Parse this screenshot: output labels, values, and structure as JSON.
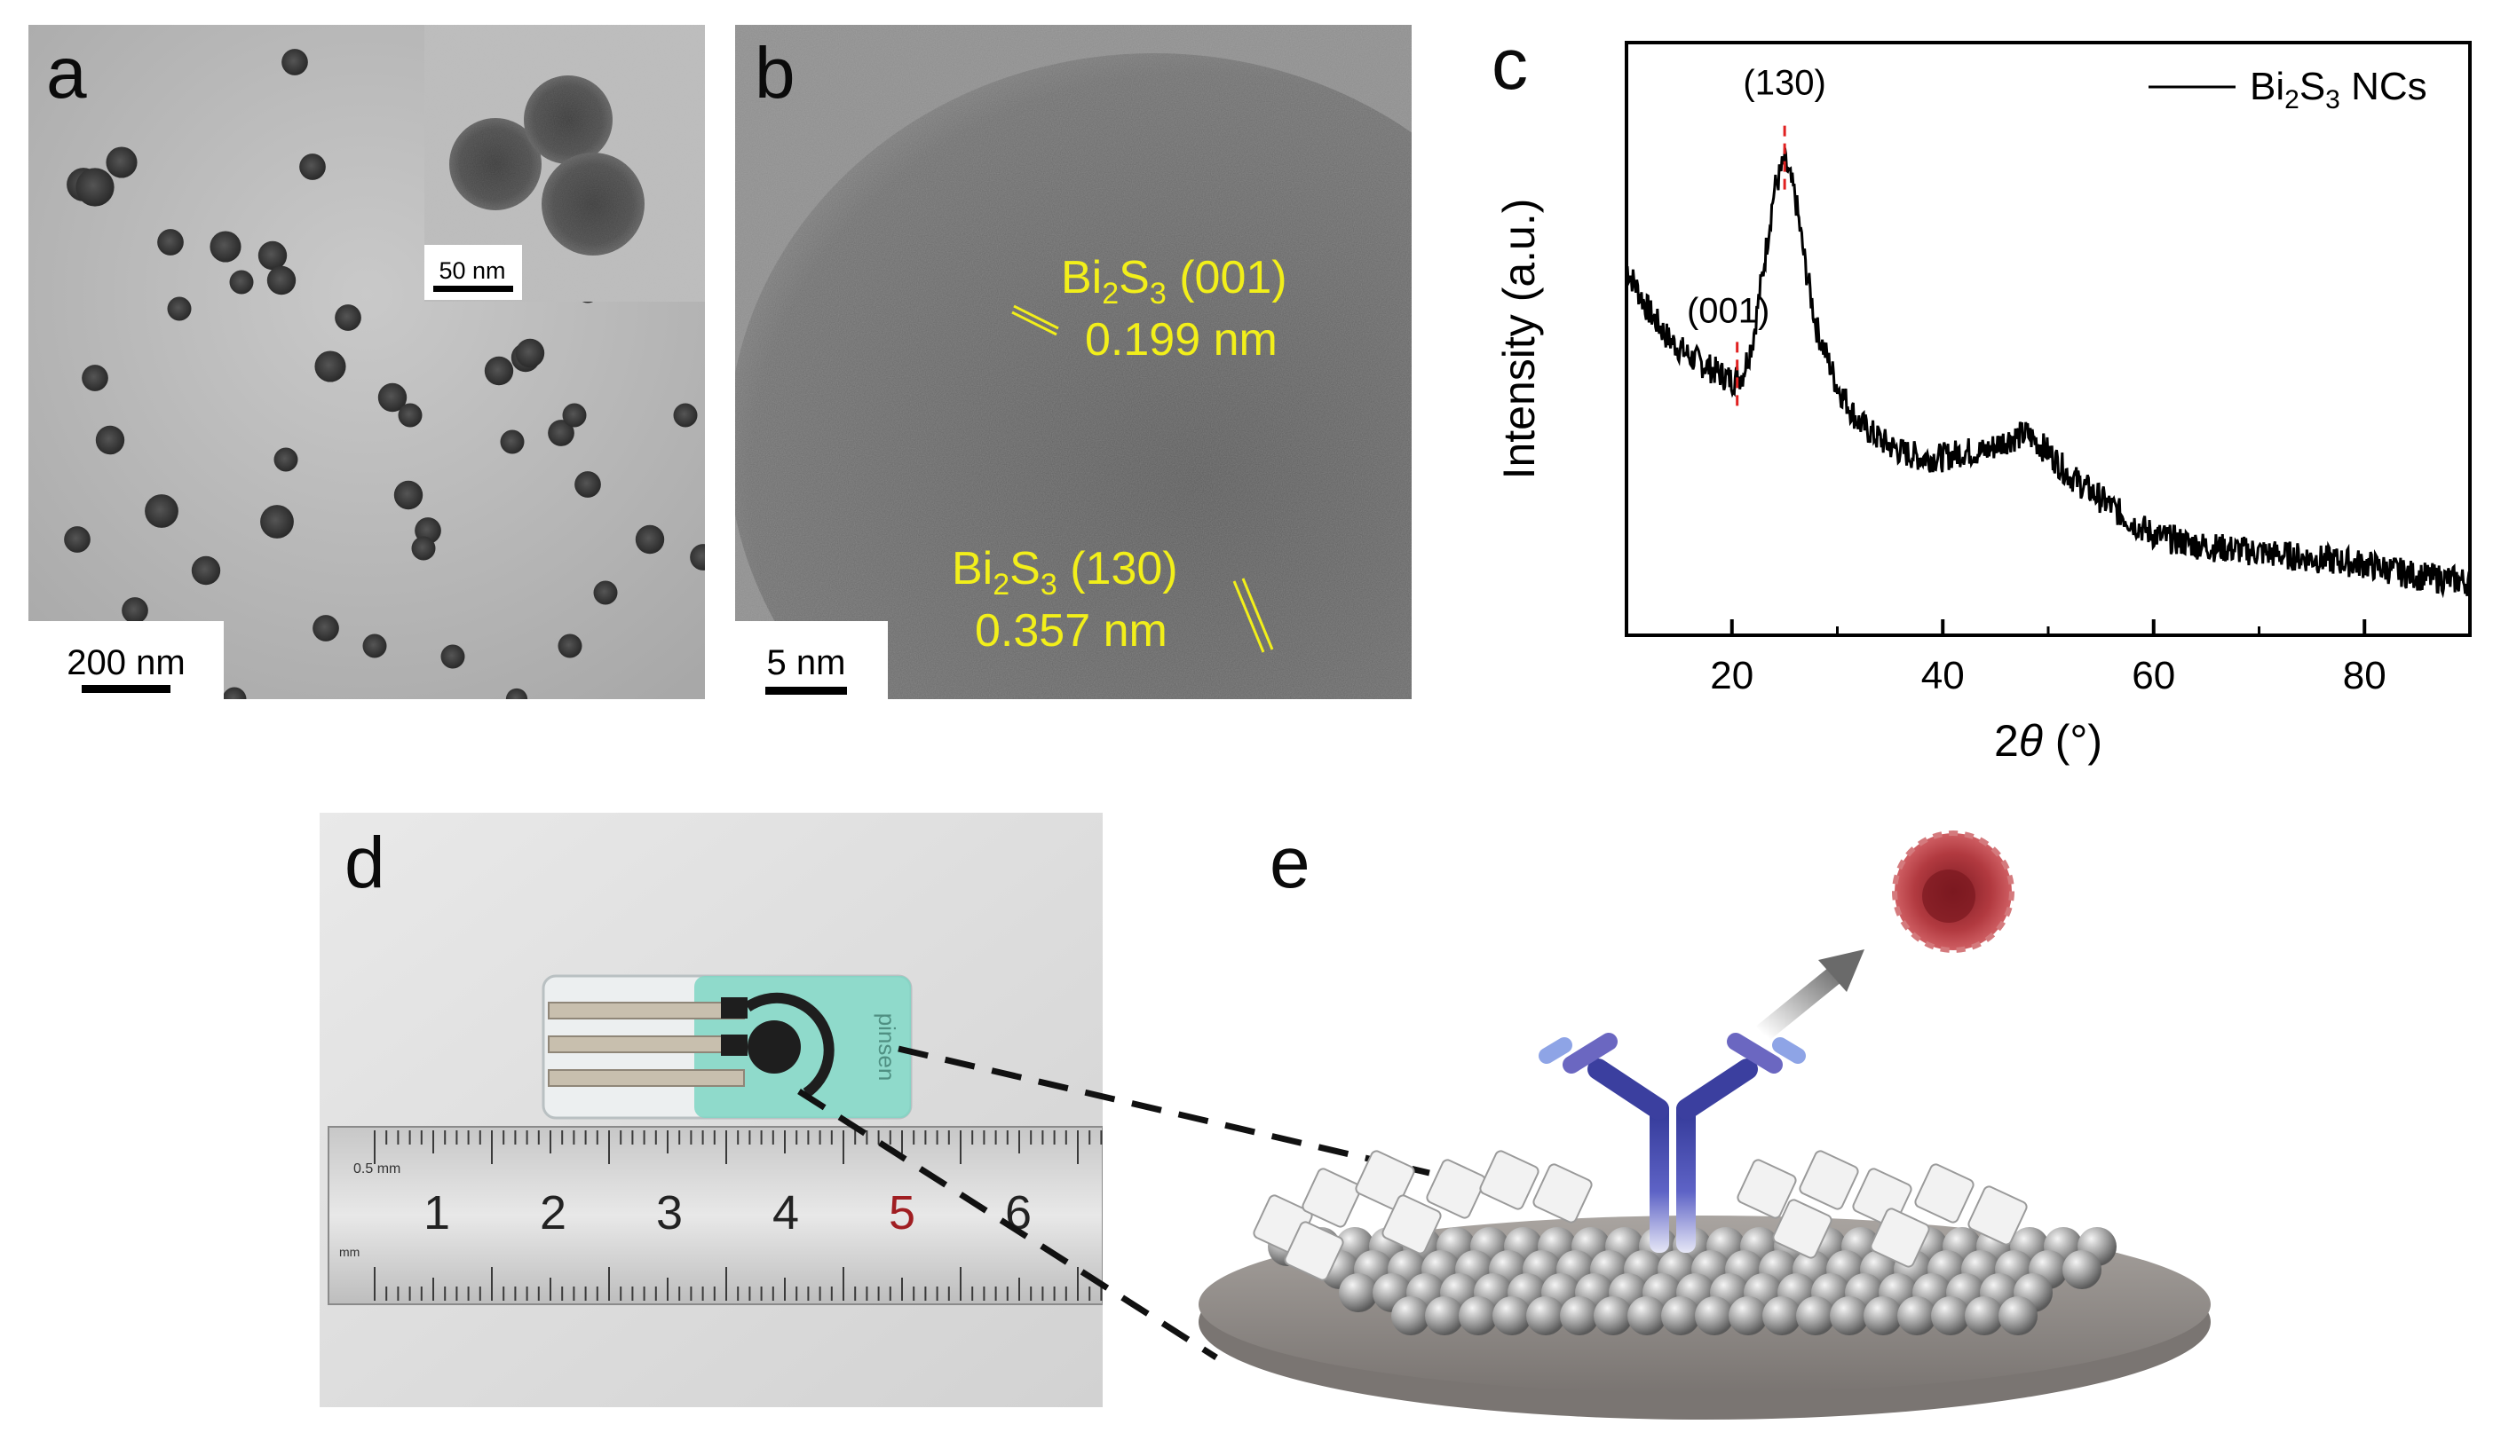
{
  "panel_a": {
    "letter": "a",
    "scale_bar_label": "200 nm",
    "inset_scale_bar_label": "50 nm"
  },
  "panel_b": {
    "letter": "b",
    "scale_bar_label": "5 nm",
    "annotation_1_formula": {
      "base1": "Bi",
      "sub1": "2",
      "base2": "S",
      "sub2": "3"
    },
    "annotation_1_plane": " (001)",
    "annotation_1_spacing": "0.199 nm",
    "annotation_2_formula": {
      "base1": "Bi",
      "sub1": "2",
      "base2": "S",
      "sub2": "3"
    },
    "annotation_2_plane": " (130)",
    "annotation_2_spacing": "0.357 nm"
  },
  "panel_c": {
    "letter": "c",
    "chart_data": {
      "type": "line",
      "xlabel_prefix": "2",
      "xlabel_theta": "θ",
      "xlabel_suffix": " (°)",
      "ylabel": "Intensity (a.u.)",
      "xlim": [
        10,
        90
      ],
      "x_ticks": [
        20,
        40,
        60,
        80
      ],
      "y_ticks_shown": false,
      "legend": {
        "base1": "Bi",
        "sub1": "2",
        "base2": "S",
        "sub2": "3",
        "suffix": " NCs",
        "placement": "top-right"
      },
      "peak_labels": [
        {
          "label": "(001)",
          "x": 20.5
        },
        {
          "label": "(130)",
          "x": 25.0
        }
      ],
      "reference_lines_color": "#e02020",
      "series": [
        {
          "name": "Bi2S3 NCs",
          "color": "#000000",
          "x": [
            10,
            12,
            14,
            16,
            18,
            20,
            21,
            22,
            23,
            24,
            25,
            26,
            27,
            28,
            30,
            32,
            34,
            36,
            38,
            40,
            42,
            44,
            46,
            48,
            50,
            52,
            55,
            58,
            60,
            62,
            65,
            70,
            75,
            80,
            85,
            90
          ],
          "y": [
            0.62,
            0.55,
            0.5,
            0.47,
            0.45,
            0.43,
            0.44,
            0.5,
            0.62,
            0.75,
            0.8,
            0.74,
            0.62,
            0.52,
            0.42,
            0.36,
            0.33,
            0.31,
            0.3,
            0.3,
            0.31,
            0.31,
            0.33,
            0.34,
            0.31,
            0.27,
            0.23,
            0.19,
            0.17,
            0.16,
            0.15,
            0.14,
            0.13,
            0.12,
            0.1,
            0.09
          ]
        }
      ],
      "ylim": [
        0,
        1.0
      ]
    }
  },
  "panel_d": {
    "letter": "d",
    "ruler_numbers": [
      "1",
      "2",
      "3",
      "4",
      "5",
      "6"
    ],
    "ruler_small_label": "0.5 mm",
    "ruler_unit_label": "mm",
    "electrode_brand": "pinsen"
  },
  "panel_e": {
    "letter": "e"
  },
  "colors": {
    "annotation_yellow": "#f2ef1a",
    "electrode_teal": "#7fd6c4",
    "antibody_blue": "#4a4fb0",
    "nanocluster_red": "#b0373c"
  }
}
